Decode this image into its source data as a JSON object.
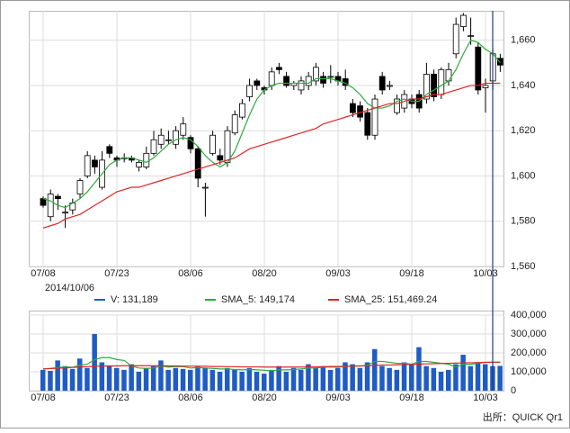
{
  "chart_data": [
    {
      "type": "candlestick",
      "categories": [
        "07/08",
        null,
        null,
        null,
        null,
        null,
        null,
        null,
        null,
        null,
        "07/23",
        null,
        null,
        null,
        null,
        null,
        null,
        null,
        null,
        null,
        "08/06",
        null,
        null,
        null,
        null,
        null,
        null,
        null,
        null,
        null,
        "08/20",
        null,
        null,
        null,
        null,
        null,
        null,
        null,
        null,
        null,
        "09/03",
        null,
        null,
        null,
        null,
        null,
        null,
        null,
        null,
        null,
        "09/18",
        null,
        null,
        null,
        null,
        null,
        null,
        null,
        null,
        null,
        "10/03",
        null,
        null
      ],
      "open": [
        1590,
        1582,
        1591,
        1584,
        1585,
        1592,
        1600,
        1607,
        1595,
        1613,
        1608,
        1608,
        1608,
        1604,
        1604,
        1610,
        1614,
        1616,
        1614,
        1618,
        1617,
        1612,
        1595,
        1610,
        1609,
        1606,
        1619,
        1626,
        1635,
        1642,
        1639,
        1640,
        1648,
        1644,
        1640,
        1638,
        1640,
        1642,
        1644,
        1644,
        1644,
        1643,
        1632,
        1631,
        1628,
        1618,
        1644,
        1640,
        1628,
        1630,
        1634,
        1636,
        1634,
        1645,
        1636,
        1642,
        1654,
        1666,
        1662,
        1657,
        1639,
        1642,
        1652
      ],
      "high": [
        1591,
        1594,
        1592,
        1587,
        1590,
        1599,
        1611,
        1609,
        1611,
        1614,
        1609,
        1610,
        1609,
        1607,
        1613,
        1620,
        1621,
        1620,
        1622,
        1626,
        1618,
        1613,
        1597,
        1620,
        1612,
        1622,
        1629,
        1634,
        1643,
        1643,
        1640,
        1648,
        1650,
        1646,
        1642,
        1644,
        1646,
        1650,
        1646,
        1649,
        1646,
        1647,
        1634,
        1633,
        1630,
        1636,
        1646,
        1642,
        1636,
        1638,
        1636,
        1638,
        1650,
        1647,
        1648,
        1650,
        1670,
        1672,
        1670,
        1659,
        1643,
        1656,
        1654
      ],
      "low": [
        1586,
        1580,
        1585,
        1577,
        1583,
        1590,
        1599,
        1601,
        1594,
        1608,
        1604,
        1606,
        1606,
        1602,
        1603,
        1609,
        1612,
        1614,
        1612,
        1616,
        1610,
        1595,
        1582,
        1609,
        1605,
        1604,
        1618,
        1625,
        1633,
        1638,
        1636,
        1638,
        1645,
        1639,
        1638,
        1636,
        1638,
        1640,
        1639,
        1641,
        1640,
        1638,
        1626,
        1624,
        1616,
        1616,
        1636,
        1638,
        1627,
        1628,
        1630,
        1628,
        1632,
        1633,
        1634,
        1640,
        1652,
        1664,
        1658,
        1636,
        1628,
        1638,
        1646
      ],
      "close": [
        1587,
        1592,
        1590,
        1584,
        1588,
        1598,
        1609,
        1604,
        1607,
        1610,
        1607,
        1608,
        1607,
        1606,
        1610,
        1616,
        1618,
        1616,
        1620,
        1623,
        1612,
        1599,
        1595,
        1618,
        1607,
        1620,
        1627,
        1632,
        1640,
        1640,
        1638,
        1646,
        1647,
        1640,
        1641,
        1642,
        1644,
        1648,
        1641,
        1644,
        1642,
        1640,
        1628,
        1626,
        1618,
        1634,
        1638,
        1640,
        1634,
        1636,
        1632,
        1630,
        1645,
        1635,
        1647,
        1647,
        1667,
        1671,
        1662,
        1638,
        1640,
        1654,
        1649
      ],
      "sma_lines": [
        {
          "color": "#2eaa3c",
          "values": [
            1590,
            1589,
            1587,
            1586,
            1588,
            1590,
            1593,
            1597,
            1601,
            1605,
            1607,
            1608,
            1608,
            1607,
            1606,
            1608,
            1611,
            1614,
            1616,
            1617,
            1616,
            1613,
            1609,
            1606,
            1604,
            1606,
            1611,
            1619,
            1627,
            1634,
            1638,
            1640,
            1641,
            1641,
            1641,
            1641,
            1641,
            1643,
            1643,
            1643,
            1642,
            1641,
            1639,
            1636,
            1632,
            1630,
            1630,
            1631,
            1633,
            1634,
            1633,
            1633,
            1636,
            1638,
            1640,
            1642,
            1647,
            1654,
            1660,
            1659,
            1656,
            1654,
            1650
          ]
        },
        {
          "color": "#e02525",
          "values": [
            1577,
            1578,
            1579,
            1581,
            1582,
            1583,
            1585,
            1587,
            1589,
            1591,
            1593,
            1594,
            1595,
            1595,
            1596,
            1597,
            1598,
            1599,
            1600,
            1601,
            1602,
            1603,
            1604,
            1605,
            1606,
            1607,
            1608,
            1610,
            1612,
            1613,
            1614,
            1615,
            1616,
            1617,
            1618,
            1619,
            1620,
            1621,
            1623,
            1624,
            1625,
            1626,
            1627,
            1628,
            1629,
            1630,
            1631,
            1632,
            1632,
            1633,
            1634,
            1634,
            1635,
            1636,
            1636,
            1637,
            1638,
            1639,
            1640,
            1640,
            1641,
            1641,
            1641
          ]
        }
      ],
      "ylim": [
        1560,
        1673
      ],
      "yticks": [
        {
          "value": 1560,
          "label": "1,560"
        },
        {
          "value": 1580,
          "label": "1,580"
        },
        {
          "value": 1600,
          "label": "1,600"
        },
        {
          "value": 1620,
          "label": "1,620"
        },
        {
          "value": 1640,
          "label": "1,640"
        },
        {
          "value": 1660,
          "label": "1,660"
        }
      ],
      "grid": true,
      "date_label": "2014/10/06"
    },
    {
      "type": "bar",
      "categories": [
        "07/08",
        null,
        null,
        null,
        null,
        null,
        null,
        null,
        null,
        null,
        "07/23",
        null,
        null,
        null,
        null,
        null,
        null,
        null,
        null,
        null,
        "08/06",
        null,
        null,
        null,
        null,
        null,
        null,
        null,
        null,
        null,
        "08/20",
        null,
        null,
        null,
        null,
        null,
        null,
        null,
        null,
        null,
        "09/03",
        null,
        null,
        null,
        null,
        null,
        null,
        null,
        null,
        null,
        "09/18",
        null,
        null,
        null,
        null,
        null,
        null,
        null,
        null,
        null,
        "10/03",
        null,
        null
      ],
      "series": [
        {
          "name": "V: 131,189",
          "color": "#1f5cc4",
          "values": [
            110000,
            105000,
            160000,
            130000,
            115000,
            170000,
            120000,
            300000,
            150000,
            130000,
            120000,
            110000,
            140000,
            100000,
            120000,
            130000,
            160000,
            110000,
            120000,
            115000,
            110000,
            130000,
            120000,
            110000,
            100000,
            120000,
            110000,
            100000,
            120000,
            100000,
            90000,
            110000,
            130000,
            100000,
            120000,
            110000,
            140000,
            120000,
            130000,
            110000,
            120000,
            150000,
            140000,
            120000,
            150000,
            220000,
            130000,
            120000,
            110000,
            150000,
            140000,
            230000,
            130000,
            120000,
            100000,
            110000,
            140000,
            190000,
            130000,
            150000,
            140000,
            130000,
            131189
          ]
        },
        {
          "name": "SMA_5: 149,174",
          "color": "#2eaa3c",
          "values": [
            115000,
            118000,
            122000,
            125000,
            124000,
            135000,
            140000,
            165000,
            175000,
            175000,
            165000,
            160000,
            130000,
            120000,
            118000,
            120000,
            130000,
            125000,
            128000,
            127000,
            120000,
            122000,
            120000,
            118000,
            115000,
            115000,
            112000,
            110000,
            112000,
            110000,
            108000,
            105000,
            110000,
            110000,
            112000,
            115000,
            120000,
            120000,
            125000,
            125000,
            125000,
            128000,
            130000,
            130000,
            135000,
            155000,
            155000,
            150000,
            145000,
            145000,
            140000,
            155000,
            155000,
            150000,
            145000,
            140000,
            125000,
            140000,
            140000,
            145000,
            150000,
            150000,
            149174
          ]
        },
        {
          "name": "SMA_25: 151,469.24",
          "color": "#e02525",
          "values": [
            115000,
            117000,
            119000,
            121000,
            123000,
            125000,
            127000,
            129000,
            130000,
            131000,
            131000,
            132000,
            132000,
            132000,
            132000,
            132000,
            132000,
            131000,
            131000,
            130000,
            130000,
            129000,
            129000,
            128000,
            128000,
            127000,
            127000,
            126000,
            126000,
            126000,
            125000,
            125000,
            125000,
            125000,
            125000,
            125000,
            126000,
            126000,
            127000,
            128000,
            128000,
            129000,
            130000,
            131000,
            132000,
            134000,
            135000,
            136000,
            137000,
            138000,
            139000,
            141000,
            142000,
            143000,
            144000,
            145000,
            146000,
            147000,
            148000,
            149000,
            150000,
            151000,
            151469.24
          ]
        }
      ],
      "ylim": [
        0,
        400000
      ],
      "yticks": [
        0,
        {
          "value": 100000,
          "label": "100,000"
        },
        {
          "value": 200000,
          "label": "200,000"
        },
        {
          "value": 300000,
          "label": "300,000"
        },
        {
          "value": 400000,
          "label": "400,000"
        }
      ],
      "grid": true
    }
  ],
  "source": "出所：QUICK Qr1"
}
